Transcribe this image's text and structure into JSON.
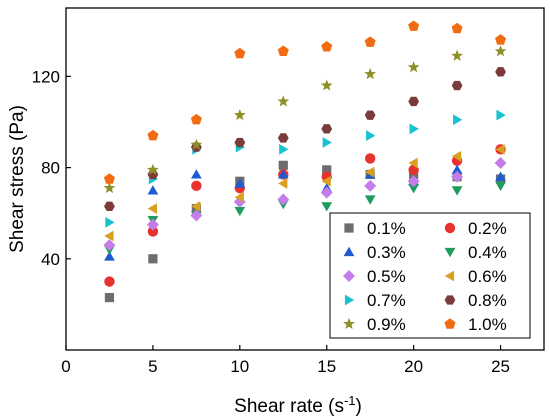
{
  "chart_data": {
    "type": "scatter",
    "xlabel": "Shear rate (s",
    "xlabel_superscript": "-1",
    "xlabel_suffix": ")",
    "ylabel": "Shear stress (Pa)",
    "xlim": [
      0,
      27.5
    ],
    "ylim": [
      0,
      150
    ],
    "x_ticks": [
      0,
      5,
      10,
      15,
      20,
      25
    ],
    "y_ticks": [
      40,
      80,
      120
    ],
    "legend_position": "bottom-right",
    "grid": false,
    "x": [
      2.5,
      5,
      7.5,
      10,
      12.5,
      15,
      17.5,
      20,
      22.5,
      25
    ],
    "series": [
      {
        "name": "0.1%",
        "marker": "square",
        "color": "#6d6d6d",
        "values": [
          23,
          40,
          62,
          74,
          81,
          79,
          77,
          77,
          76,
          75
        ]
      },
      {
        "name": "0.2%",
        "marker": "circle",
        "color": "#e8322f",
        "values": [
          30,
          52,
          72,
          71,
          77,
          76,
          84,
          79,
          83,
          88
        ]
      },
      {
        "name": "0.3%",
        "marker": "triangle-up",
        "color": "#1f5bd0",
        "values": [
          41,
          70,
          77,
          73,
          77,
          71,
          77,
          74,
          79,
          76
        ]
      },
      {
        "name": "0.4%",
        "marker": "triangle-down",
        "color": "#1d9c5e",
        "values": [
          44,
          57,
          59,
          61,
          64,
          63,
          66,
          71,
          70,
          72
        ]
      },
      {
        "name": "0.5%",
        "marker": "diamond",
        "color": "#c57ee9",
        "values": [
          46,
          55,
          59,
          65,
          66,
          69,
          72,
          74,
          76,
          82
        ]
      },
      {
        "name": "0.6%",
        "marker": "triangle-left",
        "color": "#d9a020",
        "values": [
          50,
          62,
          63,
          67,
          73,
          74,
          78,
          82,
          85,
          88
        ]
      },
      {
        "name": "0.7%",
        "marker": "triangle-right",
        "color": "#19c2cf",
        "values": [
          56,
          75,
          88,
          89,
          88,
          91,
          94,
          97,
          101,
          103
        ]
      },
      {
        "name": "0.8%",
        "marker": "hexagon",
        "color": "#7b3b3b",
        "values": [
          63,
          77,
          89,
          91,
          93,
          97,
          103,
          109,
          116,
          122
        ]
      },
      {
        "name": "0.9%",
        "marker": "star",
        "color": "#8f8f2a",
        "values": [
          71,
          79,
          90,
          103,
          109,
          116,
          121,
          124,
          129,
          131
        ]
      },
      {
        "name": "1.0%",
        "marker": "pentagon",
        "color": "#f06b12",
        "values": [
          75,
          94,
          101,
          130,
          131,
          133,
          135,
          142,
          141,
          136
        ]
      }
    ]
  }
}
